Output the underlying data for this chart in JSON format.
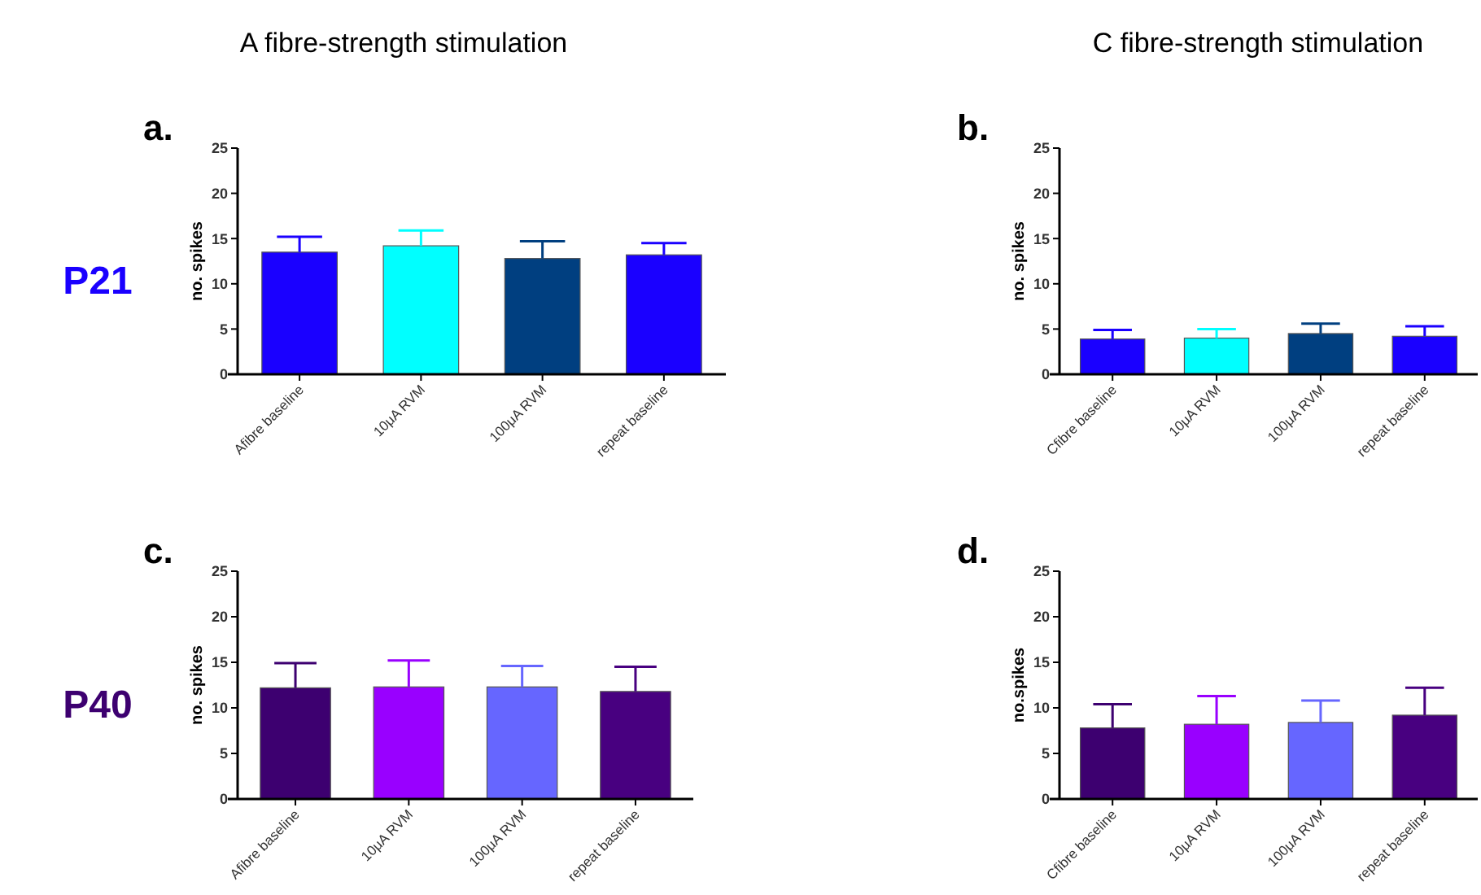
{
  "chart_data": [
    {
      "type": "bar",
      "title": "a.",
      "subtitle": "A fibre-strength stimulation",
      "annotations": [
        "P21"
      ],
      "ylabel": "no. spikes",
      "categories": [
        "Afibre baseline",
        "10μA RVM",
        "100μA RVM",
        "repeat baseline"
      ],
      "values": [
        13.5,
        14.2,
        12.8,
        13.2
      ],
      "errors": [
        [
          13.5,
          15.2
        ],
        [
          14.2,
          15.9
        ],
        [
          12.8,
          14.7
        ],
        [
          13.2,
          14.5
        ]
      ],
      "colors": [
        "#1a00ff",
        "#00ffff",
        "#003f80",
        "#1a00ff"
      ],
      "ylim": [
        0,
        25
      ],
      "yticks": [
        0,
        5,
        10,
        15,
        20,
        25
      ],
      "grid": false
    },
    {
      "type": "bar",
      "title": "b.",
      "subtitle": "C fibre-strength stimulation",
      "ylabel": "no. spikes",
      "categories": [
        "Cfibre baseline",
        "10μA RVM",
        "100μA RVM",
        "repeat baseline"
      ],
      "values": [
        3.9,
        4.0,
        4.5,
        4.2
      ],
      "errors": [
        [
          3.9,
          4.9
        ],
        [
          4.0,
          5.0
        ],
        [
          4.5,
          5.6
        ],
        [
          4.2,
          5.3
        ]
      ],
      "colors": [
        "#1a00ff",
        "#00ffff",
        "#003f80",
        "#1a00ff"
      ],
      "ylim": [
        0,
        25
      ],
      "yticks": [
        0,
        5,
        10,
        15,
        20,
        25
      ],
      "grid": false
    },
    {
      "type": "bar",
      "title": "c.",
      "annotations": [
        "P40"
      ],
      "ylabel": "no. spikes",
      "categories": [
        "Afibre baseline",
        "10μA RVM",
        "100μA RVM",
        "repeat baseline"
      ],
      "values": [
        12.2,
        12.3,
        12.3,
        11.8
      ],
      "errors": [
        [
          12.2,
          14.9
        ],
        [
          12.3,
          15.2
        ],
        [
          12.3,
          14.6
        ],
        [
          11.8,
          14.5
        ]
      ],
      "colors": [
        "#3d0070",
        "#9900ff",
        "#6666ff",
        "#480080"
      ],
      "ylim": [
        0,
        25
      ],
      "yticks": [
        0,
        5,
        10,
        15,
        20,
        25
      ],
      "grid": false
    },
    {
      "type": "bar",
      "title": "d.",
      "ylabel": "no.spikes",
      "categories": [
        "Cfibre baseline",
        "10μA RVM",
        "100μA RVM",
        "repeat baseline"
      ],
      "values": [
        7.8,
        8.2,
        8.4,
        9.2
      ],
      "errors": [
        [
          7.8,
          10.4
        ],
        [
          8.2,
          11.3
        ],
        [
          8.4,
          10.8
        ],
        [
          9.2,
          12.2
        ]
      ],
      "colors": [
        "#3d0070",
        "#9900ff",
        "#6666ff",
        "#480080"
      ],
      "ylim": [
        0,
        25
      ],
      "yticks": [
        0,
        5,
        10,
        15,
        20,
        25
      ],
      "grid": false
    }
  ]
}
